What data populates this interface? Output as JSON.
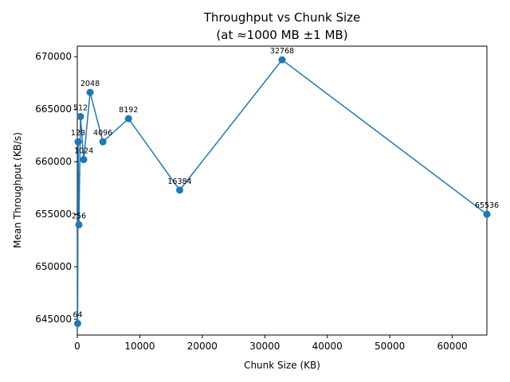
{
  "chart_data": {
    "type": "line",
    "title": "Throughput vs Chunk Size",
    "subtitle": "(at ≈1000 MB ±1 MB)",
    "xlabel": "Chunk Size (KB)",
    "ylabel": "Mean Throughput (KB/s)",
    "xlim": [
      0,
      65536
    ],
    "ylim": [
      643500,
      671000
    ],
    "xticks": [
      0,
      10000,
      20000,
      30000,
      40000,
      50000,
      60000
    ],
    "yticks": [
      645000,
      650000,
      655000,
      660000,
      665000,
      670000
    ],
    "grid": false,
    "color": "#1f77b4",
    "points": [
      {
        "x": 64,
        "y": 644600,
        "label": "64"
      },
      {
        "x": 128,
        "y": 661900,
        "label": "128"
      },
      {
        "x": 256,
        "y": 654000,
        "label": "256"
      },
      {
        "x": 512,
        "y": 664300,
        "label": "512"
      },
      {
        "x": 1024,
        "y": 660200,
        "label": "1024"
      },
      {
        "x": 2048,
        "y": 666600,
        "label": "2048"
      },
      {
        "x": 4096,
        "y": 661900,
        "label": "4096"
      },
      {
        "x": 8192,
        "y": 664100,
        "label": "8192"
      },
      {
        "x": 16384,
        "y": 657300,
        "label": "16384"
      },
      {
        "x": 32768,
        "y": 669700,
        "label": "32768"
      },
      {
        "x": 65536,
        "y": 655000,
        "label": "65536"
      }
    ]
  }
}
